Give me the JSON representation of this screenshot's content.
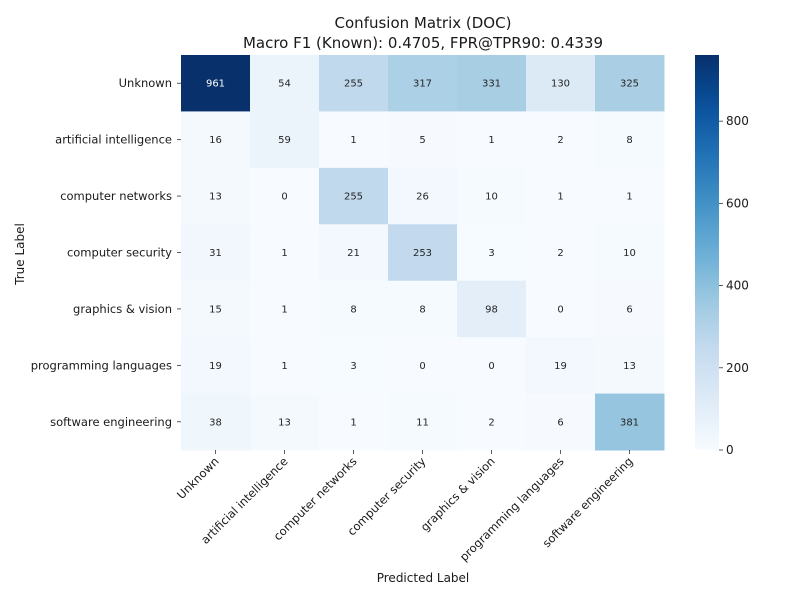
{
  "chart_data": {
    "type": "heatmap",
    "title": "Confusion Matrix (DOC)",
    "subtitle": "Macro F1 (Known): 0.4705, FPR@TPR90: 0.4339",
    "xlabel": "Predicted Label",
    "ylabel": "True Label",
    "x_categories": [
      "Unknown",
      "artificial intelligence",
      "computer networks",
      "computer security",
      "graphics & vision",
      "programming languages",
      "software engineering"
    ],
    "y_categories": [
      "Unknown",
      "artificial intelligence",
      "computer networks",
      "computer security",
      "graphics & vision",
      "programming languages",
      "software engineering"
    ],
    "values": [
      [
        961,
        54,
        255,
        317,
        331,
        130,
        325
      ],
      [
        16,
        59,
        1,
        5,
        1,
        2,
        8
      ],
      [
        13,
        0,
        255,
        26,
        10,
        1,
        1
      ],
      [
        31,
        1,
        21,
        253,
        3,
        2,
        10
      ],
      [
        15,
        1,
        8,
        8,
        98,
        0,
        6
      ],
      [
        19,
        1,
        3,
        0,
        0,
        19,
        13
      ],
      [
        38,
        13,
        1,
        11,
        2,
        6,
        381
      ]
    ],
    "colorscale": "Blues",
    "vmin": 0,
    "vmax": 961,
    "colorbar_ticks": [
      0,
      200,
      400,
      600,
      800
    ],
    "colorbar_tick_labels": [
      "0",
      "200",
      "400",
      "600",
      "800"
    ]
  }
}
